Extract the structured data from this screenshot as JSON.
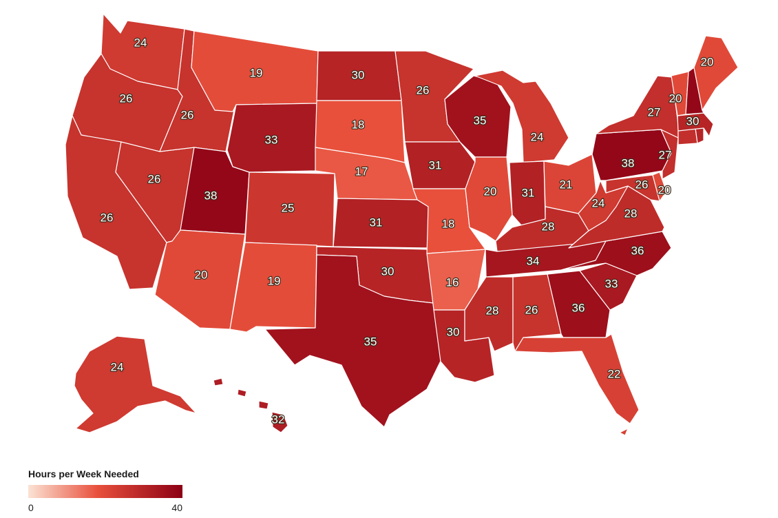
{
  "legend": {
    "title": "Hours per Week Needed",
    "min_label": "0",
    "max_label": "40",
    "min_value": 0,
    "max_value": 40,
    "color_low": "#fbe3d4",
    "color_mid": "#e8503c",
    "color_high": "#8c0014"
  },
  "states": {
    "WA": 24,
    "OR": 26,
    "CA": 26,
    "NV": 26,
    "ID": 26,
    "MT": 19,
    "WY": 33,
    "UT": 38,
    "AZ": 20,
    "NM": 19,
    "CO": 25,
    "ND": 30,
    "SD": 18,
    "NE": 17,
    "KS": 31,
    "OK": 30,
    "TX": 35,
    "MN": 26,
    "IA": 31,
    "MO": 18,
    "AR": 16,
    "LA": 30,
    "WI": 35,
    "IL": 20,
    "MI": 24,
    "IN": 31,
    "OH": 21,
    "KY": 28,
    "TN": 34,
    "MS": 28,
    "AL": 26,
    "GA": 36,
    "FL": 22,
    "SC": 33,
    "NC": 36,
    "VA": 28,
    "WV": 24,
    "MD": 26,
    "DE": 20,
    "PA": 38,
    "NJ": 27,
    "NY": 27,
    "CT": 27,
    "RI": 30,
    "MA": 30,
    "VT": 20,
    "NH": 38,
    "ME": 20,
    "AK": 24,
    "HI": 32
  }
}
